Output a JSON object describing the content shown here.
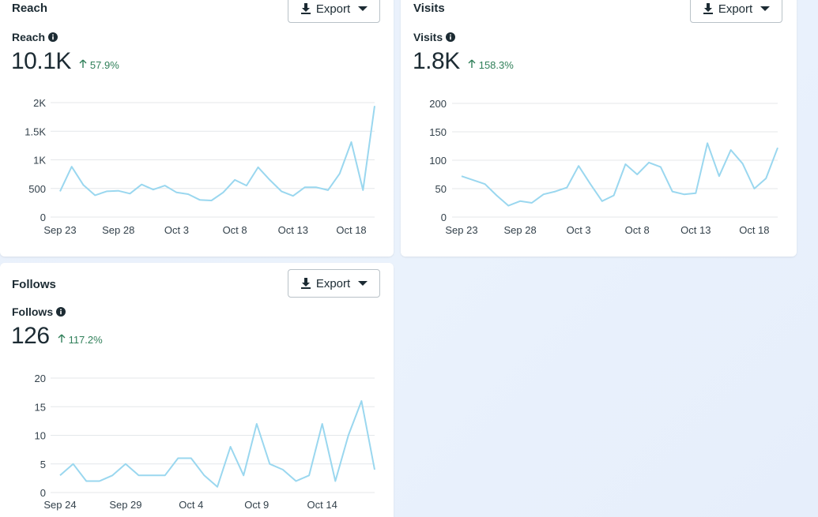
{
  "colors": {
    "line": "#9ad7ef",
    "delta_up": "#31805a",
    "text": "#1c2b33",
    "grid": "#e4e7ea"
  },
  "icons": [
    "download-icon",
    "caret-down-icon",
    "info-icon",
    "arrow-up-icon"
  ],
  "cards": {
    "reach": {
      "title": "Reach",
      "export_label": "Export",
      "metric_label": "Reach",
      "value": "10.1K",
      "delta": "57.9%"
    },
    "visits": {
      "title": "Visits",
      "export_label": "Export",
      "metric_label": "Visits",
      "value": "1.8K",
      "delta": "158.3%"
    },
    "follows": {
      "title": "Follows",
      "export_label": "Export",
      "metric_label": "Follows",
      "value": "126",
      "delta": "117.2%"
    }
  },
  "chart_data": [
    {
      "id": "reach",
      "type": "line",
      "title": "",
      "x_start": "Sep 23",
      "x_tick_labels": [
        "Sep 23",
        "Sep 28",
        "Oct 3",
        "Oct 8",
        "Oct 13",
        "Oct 18"
      ],
      "x_tick_indices": [
        0,
        5,
        10,
        15,
        20,
        25
      ],
      "y_ticks": [
        0,
        500,
        1000,
        1500,
        2000
      ],
      "y_tick_labels": [
        "0",
        "500",
        "1K",
        "1.5K",
        "2K"
      ],
      "ylim": [
        0,
        2000
      ],
      "grid": true,
      "values": [
        450,
        880,
        560,
        380,
        450,
        460,
        410,
        570,
        480,
        550,
        430,
        400,
        300,
        290,
        430,
        650,
        550,
        870,
        650,
        450,
        370,
        520,
        520,
        470,
        760,
        1310,
        470,
        1940
      ]
    },
    {
      "id": "visits",
      "type": "line",
      "title": "",
      "x_tick_labels": [
        "Sep 23",
        "Sep 28",
        "Oct 3",
        "Oct 8",
        "Oct 13",
        "Oct 18"
      ],
      "x_tick_indices": [
        0,
        5,
        10,
        15,
        20,
        25
      ],
      "y_ticks": [
        0,
        50,
        100,
        150,
        200
      ],
      "y_tick_labels": [
        "0",
        "50",
        "100",
        "150",
        "200"
      ],
      "ylim": [
        0,
        200
      ],
      "grid": true,
      "values": [
        72,
        65,
        58,
        38,
        20,
        28,
        25,
        40,
        45,
        52,
        90,
        58,
        28,
        38,
        93,
        75,
        96,
        88,
        45,
        40,
        42,
        130,
        72,
        118,
        94,
        50,
        68,
        122
      ]
    },
    {
      "id": "follows",
      "type": "line",
      "title": "",
      "x_tick_labels": [
        "Sep 24",
        "Sep 29",
        "Oct 4",
        "Oct 9",
        "Oct 14"
      ],
      "x_tick_indices": [
        0,
        5,
        10,
        15,
        20
      ],
      "y_ticks": [
        0,
        5,
        10,
        15,
        20
      ],
      "y_tick_labels": [
        "0",
        "5",
        "10",
        "15",
        "20"
      ],
      "ylim": [
        0,
        20
      ],
      "grid": true,
      "values": [
        3,
        5,
        2,
        2,
        3,
        5,
        3,
        3,
        3,
        6,
        6,
        3,
        1,
        8,
        3,
        12,
        5,
        4,
        2,
        3,
        12,
        2,
        10,
        16,
        4
      ]
    }
  ]
}
